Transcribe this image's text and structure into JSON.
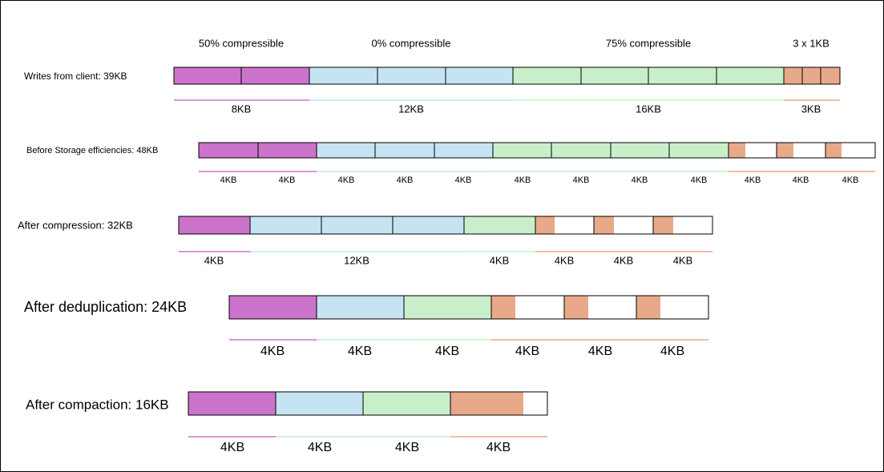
{
  "headers": [
    "50% compressible",
    "0% compressible",
    "75% compressible",
    "3 x 1KB"
  ],
  "rows": [
    {
      "label": "Writes from client: 39KB",
      "sizes": [
        "8KB",
        "12KB",
        "16KB",
        "3KB"
      ]
    },
    {
      "label": "Before Storage efficiencies: 48KB",
      "sizes": [
        "4KB",
        "4KB",
        "4KB",
        "4KB",
        "4KB",
        "4KB",
        "4KB",
        "4KB",
        "4KB",
        "4KB",
        "4KB",
        "4KB"
      ]
    },
    {
      "label": "After compression: 32KB",
      "sizes": [
        "4KB",
        "12KB",
        "4KB",
        "4KB",
        "4KB",
        "4KB"
      ]
    },
    {
      "label": "After deduplication: 24KB",
      "sizes": [
        "4KB",
        "4KB",
        "4KB",
        "4KB",
        "4KB",
        "4KB"
      ]
    },
    {
      "label": "After compaction: 16KB",
      "sizes": [
        "4KB",
        "4KB",
        "4KB",
        "4KB"
      ]
    }
  ]
}
